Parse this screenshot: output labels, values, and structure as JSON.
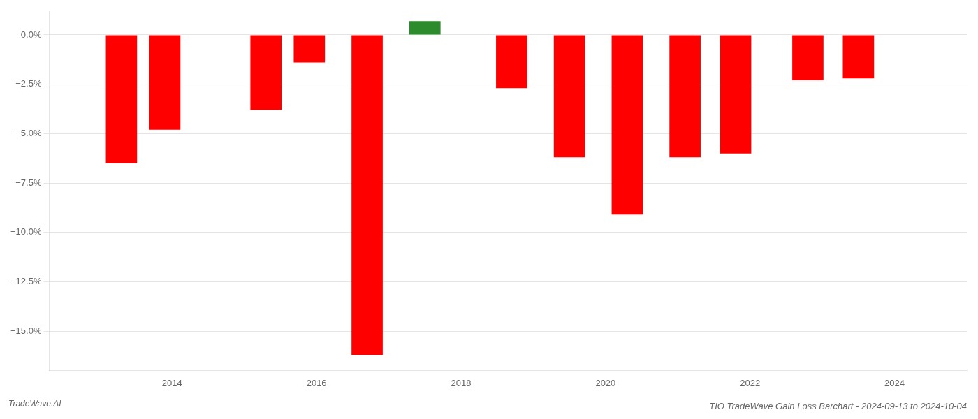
{
  "chart_data": {
    "type": "bar",
    "title": "TIO TradeWave Gain Loss Barchart - 2024-09-13 to 2024-10-04",
    "annotations": [
      "TradeWave.AI"
    ],
    "x": [
      2013.3,
      2013.9,
      2015.3,
      2015.9,
      2016.7,
      2017.5,
      2018.7,
      2019.5,
      2020.3,
      2021.1,
      2021.8,
      2022.8,
      2023.5
    ],
    "values": [
      -6.5,
      -4.8,
      -3.8,
      -1.4,
      -16.2,
      0.7,
      -2.7,
      -6.2,
      -9.1,
      -6.2,
      -6.0,
      -2.3,
      -2.2
    ],
    "colors": [
      "#ff0000",
      "#ff0000",
      "#ff0000",
      "#ff0000",
      "#ff0000",
      "#2d8a2d",
      "#ff0000",
      "#ff0000",
      "#ff0000",
      "#ff0000",
      "#ff0000",
      "#ff0000",
      "#ff0000"
    ],
    "xlim": [
      2012.3,
      2025.0
    ],
    "xticks": [
      2014,
      2016,
      2018,
      2020,
      2022,
      2024
    ],
    "ylim": [
      -17.0,
      1.2
    ],
    "yticks": [
      {
        "value": 0.0,
        "label": "0.0%"
      },
      {
        "value": -2.5,
        "label": "−2.5%"
      },
      {
        "value": -5.0,
        "label": "−5.0%"
      },
      {
        "value": -7.5,
        "label": "−7.5%"
      },
      {
        "value": -10.0,
        "label": "−10.0%"
      },
      {
        "value": -12.5,
        "label": "−12.5%"
      },
      {
        "value": -15.0,
        "label": "−15.0%"
      }
    ],
    "grid": true
  }
}
